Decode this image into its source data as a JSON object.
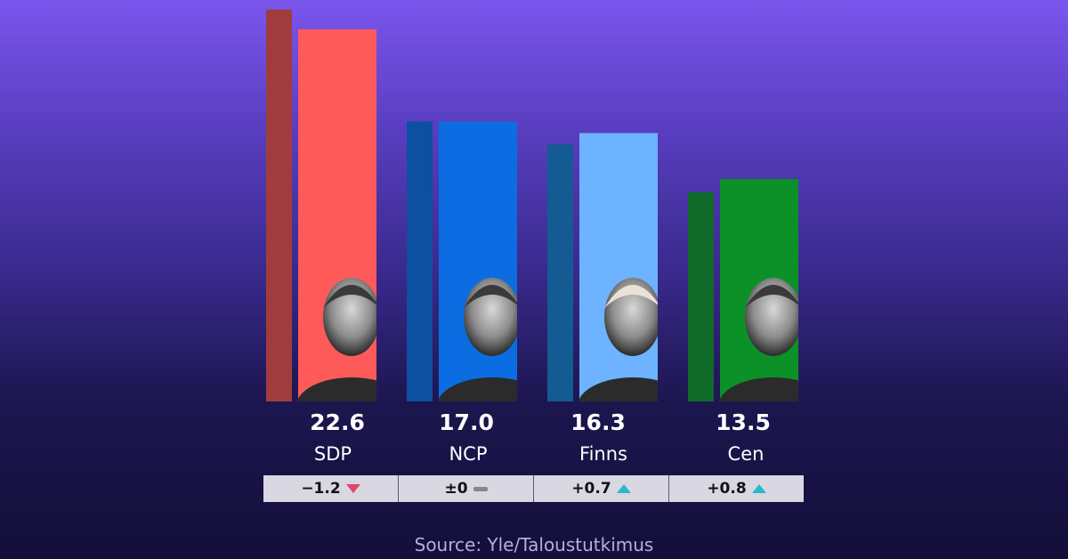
{
  "chart_data": {
    "type": "bar",
    "categories": [
      "SDP",
      "NCP",
      "Finns",
      "Cen"
    ],
    "series": [
      {
        "values": [
          23.8,
          17.0,
          15.6,
          12.7
        ]
      },
      {
        "values": [
          22.6,
          17.0,
          16.3,
          13.5
        ]
      }
    ],
    "value_labels": [
      "22.6",
      "17.0",
      "16.3",
      "13.5"
    ],
    "changes": [
      "−1.2",
      "±0",
      "+0.7",
      "+0.8"
    ],
    "change_directions": [
      "down",
      "flat",
      "up",
      "up"
    ],
    "colors_previous": [
      "#a13c3e",
      "#0d4fa1",
      "#135b92",
      "#0f6a2a"
    ],
    "colors_current": [
      "#ff5a5a",
      "#0b6de1",
      "#6db3ff",
      "#0b9128"
    ],
    "ylim": [
      0,
      24
    ],
    "portraits": [
      "photo",
      "photo",
      "photo",
      "photo"
    ],
    "source": "Source: Yle/Taloustutkimus"
  }
}
